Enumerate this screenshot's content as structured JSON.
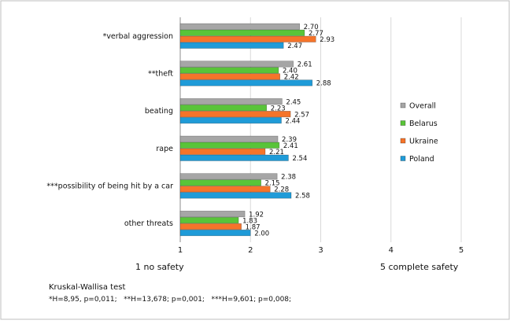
{
  "chart_data": {
    "type": "bar",
    "orientation": "horizontal",
    "categories": [
      "*verbal aggression",
      "**theft",
      "beating",
      "rape",
      "***possibility of being hit by a car",
      "other threats"
    ],
    "series": [
      {
        "name": "Overall",
        "values": [
          2.7,
          2.61,
          2.45,
          2.39,
          2.38,
          1.92
        ],
        "color": "#a6a6a6"
      },
      {
        "name": "Belarus",
        "values": [
          2.77,
          2.4,
          2.23,
          2.41,
          2.15,
          1.83
        ],
        "color": "#59c439"
      },
      {
        "name": "Ukraine",
        "values": [
          2.93,
          2.42,
          2.57,
          2.21,
          2.28,
          1.87
        ],
        "color": "#f5742a"
      },
      {
        "name": "Poland",
        "values": [
          2.47,
          2.88,
          2.44,
          2.54,
          2.58,
          2.0
        ],
        "color": "#1f9bd8"
      }
    ],
    "data_labels": [
      [
        "2.70",
        "2.61",
        "2.45",
        "2.39",
        "2.38",
        "1.92"
      ],
      [
        "2.77",
        "2.40",
        "2.23",
        "2.41",
        "2.15",
        "1.83"
      ],
      [
        "2.93",
        "2.42",
        "2.57",
        "2.21",
        "2.28",
        "1.87"
      ],
      [
        "2.47",
        "2.88",
        "2.44",
        "2.54",
        "2.58",
        "2.00"
      ]
    ],
    "x_ticks": [
      "1",
      "2",
      "3",
      "4",
      "5"
    ],
    "xlim": [
      1,
      5
    ],
    "grid": true,
    "legend_position": "right",
    "title": "",
    "xlabel": "",
    "ylabel": ""
  },
  "scale_notes": {
    "left": "1 no safety",
    "right": "5 complete safety"
  },
  "footnote": {
    "test_name": "Kruskal-Wallisa test",
    "results": "*H=8,95, p=0,011;   **H=13,678; p=0,001;   ***H=9,601; p=0,008;"
  }
}
